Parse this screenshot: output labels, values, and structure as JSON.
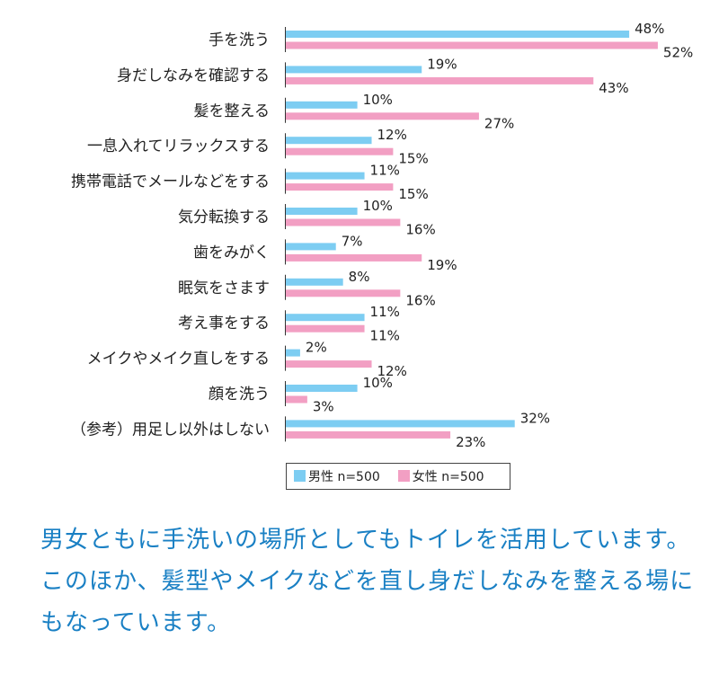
{
  "chart_data": {
    "type": "bar",
    "orientation": "horizontal",
    "categories": [
      "手を洗う",
      "身だしなみを確認する",
      "髪を整える",
      "一息入れてリラックスする",
      "携帯電話でメールなどをする",
      "気分転換する",
      "歯をみがく",
      "眠気をさます",
      "考え事をする",
      "メイクやメイク直しをする",
      "顔を洗う",
      "（参考）用足し以外はしない"
    ],
    "series": [
      {
        "name": "男性 n=500",
        "color": "#7dcdf2",
        "values": [
          48,
          19,
          10,
          12,
          11,
          10,
          7,
          8,
          11,
          2,
          10,
          32
        ]
      },
      {
        "name": "女性 n=500",
        "color": "#f29fc3",
        "values": [
          52,
          43,
          27,
          15,
          15,
          16,
          19,
          16,
          11,
          12,
          3,
          23
        ]
      }
    ],
    "unit": "%",
    "xlim": [
      0,
      55
    ],
    "legend_position": "bottom",
    "grid": false
  },
  "caption": "男女ともに手洗いの場所としてもトイレを活用しています。このほか、髪型やメイクなどを直し身だしなみを整える場にもなっています。"
}
